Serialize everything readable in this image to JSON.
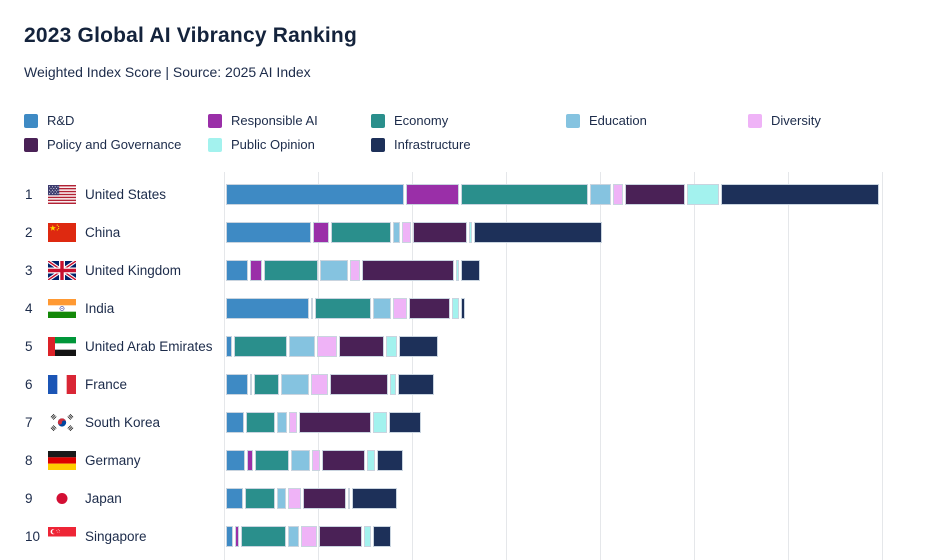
{
  "header": {
    "title": "2023 Global AI Vibrancy Ranking",
    "subtitle": "Weighted Index Score | Source: 2025 AI Index"
  },
  "legend": {
    "items": [
      {
        "label": "R&D",
        "color": "#3E8AC4"
      },
      {
        "label": "Responsible AI",
        "color": "#9A2FA8"
      },
      {
        "label": "Economy",
        "color": "#2A8F8C"
      },
      {
        "label": "Education",
        "color": "#85C3E0"
      },
      {
        "label": "Diversity",
        "color": "#EFB3F7"
      },
      {
        "label": "Policy and Governance",
        "color": "#4A2156"
      },
      {
        "label": "Public Opinion",
        "color": "#A3F2EE"
      },
      {
        "label": "Infrastructure",
        "color": "#1D3059"
      }
    ]
  },
  "chart_data": {
    "type": "bar",
    "stacked": true,
    "orientation": "horizontal",
    "title": "2023 Global AI Vibrancy Ranking",
    "subtitle": "Weighted Index Score | Source: 2025 AI Index",
    "xlabel": "",
    "ylabel": "",
    "x_axis": {
      "min": 0,
      "max": 77,
      "gridline_step": 10,
      "tick_labels_visible": false,
      "grid": true
    },
    "legend_position": "top",
    "categories": [
      "R&D",
      "Responsible AI",
      "Economy",
      "Education",
      "Diversity",
      "Policy and Governance",
      "Public Opinion",
      "Infrastructure"
    ],
    "series_colors": [
      "#3E8AC4",
      "#9A2FA8",
      "#2A8F8C",
      "#85C3E0",
      "#EFB3F7",
      "#4A2156",
      "#A3F2EE",
      "#1D3059"
    ],
    "rows": [
      {
        "rank": "1",
        "country": "United States",
        "flag": "us-flag",
        "values": [
          19.1,
          5.9,
          13.7,
          2.5,
          1.2,
          6.6,
          3.7,
          17.0
        ]
      },
      {
        "rank": "2",
        "country": "China",
        "flag": "china-flag",
        "values": [
          9.3,
          1.9,
          6.6,
          0.9,
          1.2,
          6.0,
          0.5,
          13.8
        ]
      },
      {
        "rank": "3",
        "country": "United Kingdom",
        "flag": "uk-flag",
        "values": [
          2.6,
          1.4,
          6.0,
          3.2,
          1.3,
          10.0,
          0.5,
          2.2
        ]
      },
      {
        "rank": "4",
        "country": "India",
        "flag": "india-flag",
        "values": [
          9.0,
          0.3,
          6.2,
          2.1,
          1.7,
          4.6,
          1.0,
          0.6
        ]
      },
      {
        "rank": "5",
        "country": "United Arab Emirates",
        "flag": "uae-flag",
        "values": [
          0.8,
          0,
          5.9,
          3.0,
          2.3,
          5.0,
          1.4,
          4.4
        ]
      },
      {
        "rank": "6",
        "country": "France",
        "flag": "france-flag",
        "values": [
          2.5,
          0.4,
          2.9,
          3.2,
          2.0,
          6.4,
          0.9,
          4.0
        ]
      },
      {
        "rank": "7",
        "country": "South Korea",
        "flag": "south-korea-flag",
        "values": [
          2.1,
          0,
          3.3,
          1.3,
          1.1,
          7.8,
          1.7,
          3.7
        ]
      },
      {
        "rank": "8",
        "country": "Germany",
        "flag": "germany-flag",
        "values": [
          2.2,
          0.9,
          3.8,
          2.3,
          1.0,
          4.8,
          1.1,
          3.0
        ]
      },
      {
        "rank": "9",
        "country": "Japan",
        "flag": "japan-flag",
        "values": [
          2.0,
          0,
          3.4,
          1.2,
          1.6,
          4.8,
          0.4,
          5.0
        ]
      },
      {
        "rank": "10",
        "country": "Singapore",
        "flag": "singapore-flag",
        "values": [
          1.0,
          0.6,
          5.0,
          1.4,
          1.9,
          4.8,
          0.9,
          2.2
        ]
      }
    ]
  }
}
